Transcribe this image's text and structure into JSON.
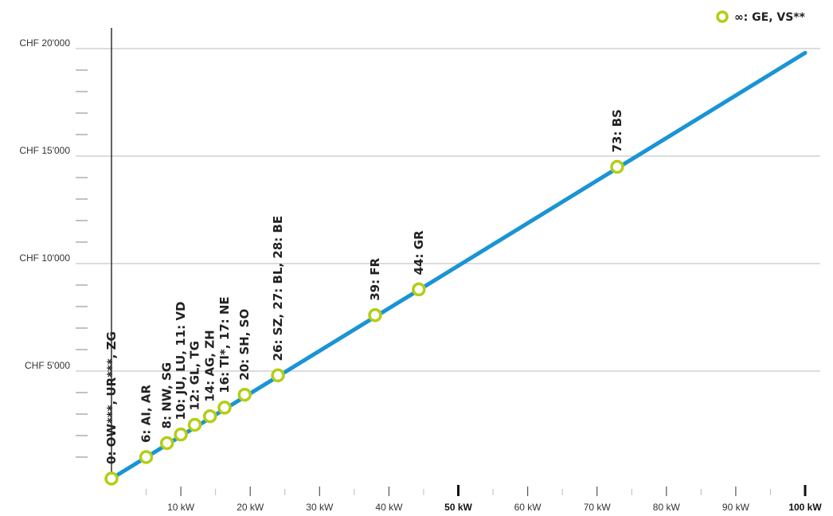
{
  "chart_data": {
    "type": "line",
    "legend": {
      "label": "∞: GE, VS**",
      "position": "top-right"
    },
    "colors": {
      "line": "#1a94d4",
      "marker": "#b4cd14",
      "grid": "#c8c8c8",
      "axis": "#222222"
    },
    "xlim": [
      0,
      100
    ],
    "ylim": [
      0,
      20000
    ],
    "yticks": [
      {
        "value": 5000,
        "label": "CHF 5'000"
      },
      {
        "value": 10000,
        "label": "CHF 10'000"
      },
      {
        "value": 15000,
        "label": "CHF 15'000"
      },
      {
        "value": 20000,
        "label": "CHF 20'000"
      }
    ],
    "xticks": [
      {
        "value": 10,
        "label": "10 kW",
        "bold": false
      },
      {
        "value": 20,
        "label": "20 kW",
        "bold": false
      },
      {
        "value": 30,
        "label": "30 kW",
        "bold": false
      },
      {
        "value": 40,
        "label": "40 kW",
        "bold": false
      },
      {
        "value": 50,
        "label": "50 kW",
        "bold": true
      },
      {
        "value": 60,
        "label": "60 kW",
        "bold": false
      },
      {
        "value": 70,
        "label": "70 kW",
        "bold": false
      },
      {
        "value": 80,
        "label": "80 kW",
        "bold": false
      },
      {
        "value": 90,
        "label": "90 kW",
        "bold": false
      },
      {
        "value": 100,
        "label": "100 kW",
        "bold": true
      }
    ],
    "line": {
      "x": [
        0,
        100
      ],
      "y": [
        0,
        19800
      ]
    },
    "points": [
      {
        "x": 0,
        "y": 0,
        "label": "0: OW***, UR***, ZG"
      },
      {
        "x": 5,
        "y": 1000,
        "label": "6: AI, AR"
      },
      {
        "x": 8,
        "y": 1650,
        "label": "8: NW, SG"
      },
      {
        "x": 10,
        "y": 2050,
        "label": "10: JU, LU, 11: VD"
      },
      {
        "x": 12,
        "y": 2500,
        "label": "12: GL, TG"
      },
      {
        "x": 14.2,
        "y": 2900,
        "label": "14: AG, ZH"
      },
      {
        "x": 16.3,
        "y": 3300,
        "label": "16: TI*, 17: NE"
      },
      {
        "x": 19.2,
        "y": 3900,
        "label": "20: SH, SO"
      },
      {
        "x": 24,
        "y": 4800,
        "label": "26: SZ, 27: BL, 28: BE"
      },
      {
        "x": 38,
        "y": 7600,
        "label": "39: FR"
      },
      {
        "x": 44.3,
        "y": 8800,
        "label": "44: GR"
      },
      {
        "x": 72.9,
        "y": 14500,
        "label": "73: BS"
      }
    ]
  }
}
